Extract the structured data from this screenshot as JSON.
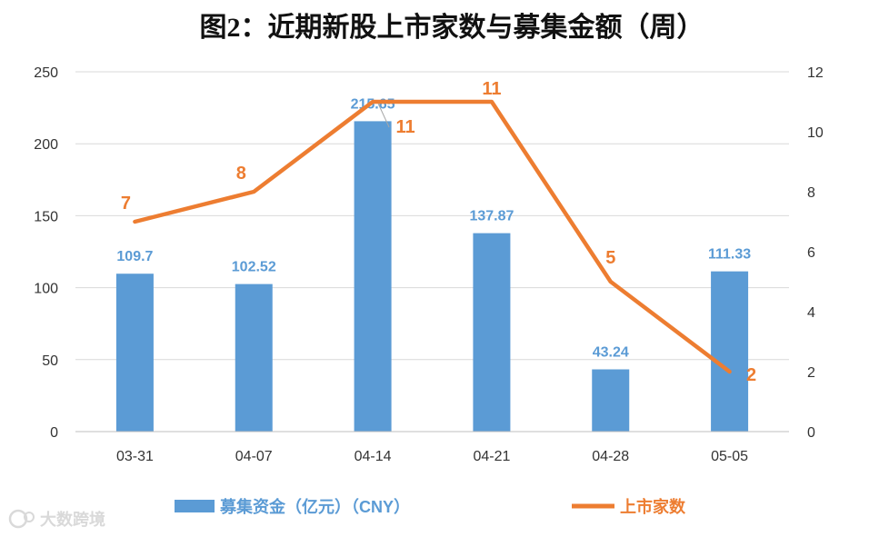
{
  "chart_data": {
    "type": "bar+line",
    "title": "图2：近期新股上市家数与募集金额（周）",
    "categories": [
      "03-31",
      "04-07",
      "04-14",
      "04-21",
      "04-28",
      "05-05"
    ],
    "series": [
      {
        "name": "募集资金（亿元）（CNY）",
        "type": "bar",
        "axis": "left",
        "color": "#5b9bd5",
        "values": [
          109.7,
          102.52,
          215.65,
          137.87,
          43.24,
          111.33
        ],
        "labels": [
          "109.7",
          "102.52",
          "215.65",
          "137.87",
          "43.24",
          "111.33"
        ]
      },
      {
        "name": "上市家数",
        "type": "line",
        "axis": "right",
        "color": "#ed7d31",
        "values": [
          7,
          8,
          11,
          11,
          5,
          2
        ],
        "labels": [
          "7",
          "8",
          "11",
          "11",
          "5",
          "2"
        ]
      }
    ],
    "y_left": {
      "min": 0,
      "max": 250,
      "ticks": [
        "0",
        "50",
        "100",
        "150",
        "200",
        "250"
      ]
    },
    "y_right": {
      "min": 0,
      "max": 12,
      "ticks": [
        "0",
        "2",
        "4",
        "6",
        "8",
        "10",
        "12"
      ]
    },
    "grid": true,
    "legend_position": "bottom"
  },
  "watermark": {
    "text": "大数跨境",
    "icon": "logo-mark-icon"
  }
}
